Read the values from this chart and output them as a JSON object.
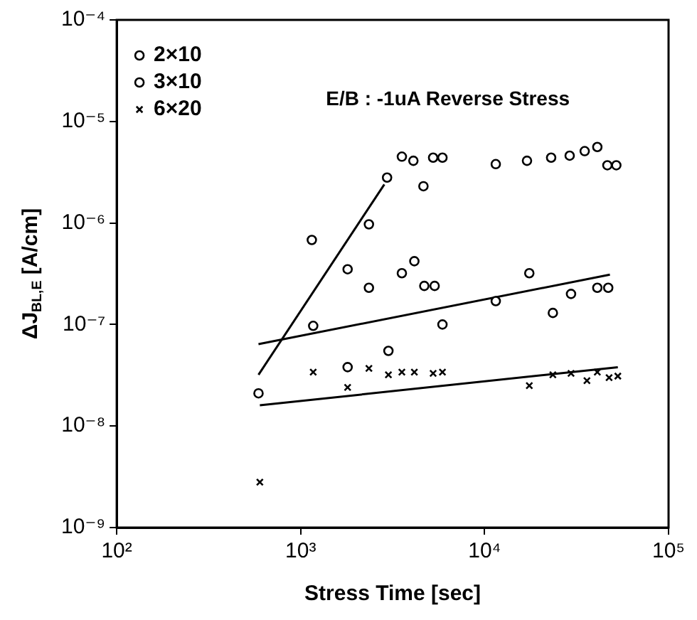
{
  "chart_data": {
    "type": "scatter",
    "xlabel": "Stress Time [sec]",
    "ylabel": "ΔJ$_{BL,E}$ [A/cm]",
    "log": "xy",
    "xlim": [
      100,
      100000
    ],
    "ylim": [
      1e-09,
      0.0001
    ],
    "xticks": [
      {
        "value": 100,
        "label": "10²"
      },
      {
        "value": 1000,
        "label": "10³"
      },
      {
        "value": 10000,
        "label": "10⁴"
      },
      {
        "value": 100000,
        "label": "10⁵"
      }
    ],
    "yticks": [
      {
        "value": 1e-09,
        "label": "10⁻⁹"
      },
      {
        "value": 1e-08,
        "label": "10⁻⁸"
      },
      {
        "value": 1e-07,
        "label": "10⁻⁷"
      },
      {
        "value": 1e-06,
        "label": "10⁻⁶"
      },
      {
        "value": 1e-05,
        "label": "10⁻⁵"
      },
      {
        "value": 0.0001,
        "label": "10⁻⁴"
      }
    ],
    "grid": false,
    "legend": "top left",
    "annotations": [
      "E/B : -1uA Reverse Stress"
    ],
    "series": [
      {
        "name": "2×10",
        "color": "#000000",
        "marker": "circle",
        "x": [
          590,
          1150,
          1800,
          2350,
          2950,
          3550,
          4100,
          4650,
          5250,
          5900,
          11500,
          17000,
          23000,
          29000,
          35000,
          41000,
          46500,
          52000
        ],
        "values": [
          2.1e-08,
          6.8e-07,
          3.5e-07,
          9.7e-07,
          2.8e-06,
          4.5e-06,
          4.1e-06,
          2.3e-06,
          4.4e-06,
          4.4e-06,
          3.8e-06,
          4.1e-06,
          4.4e-06,
          4.6e-06,
          5.1e-06,
          5.6e-06,
          3.7e-06,
          3.7e-06
        ]
      },
      {
        "name": "3×10",
        "color": "#000000",
        "marker": "circle",
        "x": [
          1170,
          1800,
          2350,
          3000,
          3550,
          4150,
          4700,
          5350,
          5900,
          11500,
          17500,
          23500,
          29500,
          41000,
          47000
        ],
        "values": [
          9.7e-08,
          3.8e-08,
          2.3e-07,
          5.5e-08,
          3.2e-07,
          4.2e-07,
          2.4e-07,
          2.4e-07,
          1e-07,
          1.7e-07,
          3.2e-07,
          1.3e-07,
          2e-07,
          2.3e-07,
          2.3e-07
        ]
      },
      {
        "name": "6×20",
        "color": "#000000",
        "marker": "cross",
        "x": [
          600,
          1170,
          1800,
          2350,
          3000,
          3550,
          4150,
          5250,
          5900,
          17500,
          23500,
          29500,
          36000,
          41000,
          47500,
          53000
        ],
        "values": [
          2.8e-09,
          3.4e-08,
          2.4e-08,
          3.7e-08,
          3.2e-08,
          3.4e-08,
          3.4e-08,
          3.3e-08,
          3.4e-08,
          2.5e-08,
          3.2e-08,
          3.3e-08,
          2.8e-08,
          3.4e-08,
          3e-08,
          3.1e-08
        ]
      },
      {
        "type": "line",
        "color": "#000000",
        "marker": "none",
        "line_style": "solid",
        "x": [
          590,
          2850
        ],
        "values": [
          3.2e-08,
          2.4e-06
        ]
      },
      {
        "type": "line",
        "color": "#000000",
        "marker": "none",
        "line_style": "solid",
        "x": [
          590,
          48000
        ],
        "values": [
          6.4e-08,
          3.1e-07
        ]
      },
      {
        "type": "line",
        "color": "#000000",
        "marker": "none",
        "line_style": "solid",
        "x": [
          600,
          53000
        ],
        "values": [
          1.6e-08,
          3.8e-08
        ]
      }
    ]
  }
}
